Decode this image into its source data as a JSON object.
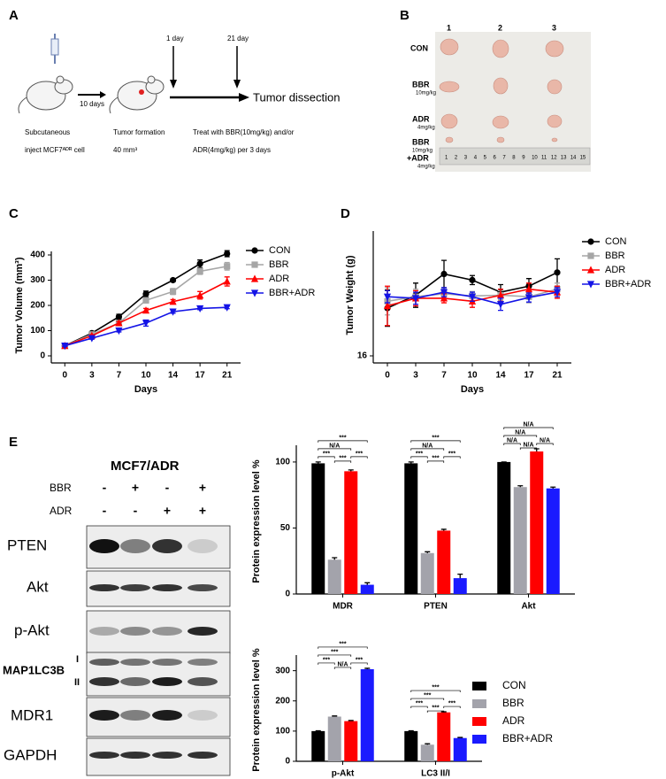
{
  "panel_labels": {
    "a": "A",
    "b": "B",
    "c": "C",
    "d": "D",
    "e": "E"
  },
  "panel_a": {
    "interval": "10 days",
    "day_start": "1 day",
    "day_end": "21 day",
    "outcome": "Tumor dissection",
    "step1": [
      "Subcutaneous",
      "inject MCF7ᴬᴰᴿ cell"
    ],
    "step2": [
      "Tumor formation",
      "40 mm³"
    ],
    "step3": [
      "Treat with BBR(10mg/kg)  and/or",
      "ADR(4mg/kg) per 3 days"
    ]
  },
  "panel_b": {
    "columns": [
      "1",
      "2",
      "3"
    ],
    "rows": [
      [
        "CON"
      ],
      [
        "BBR",
        "10mg/kg"
      ],
      [
        "ADR",
        "4mg/kg"
      ],
      [
        "BBR",
        "10mg/kg",
        "+ADR",
        "4mg/kg"
      ]
    ],
    "ruler": [
      "1",
      "2",
      "3",
      "4",
      "5",
      "6",
      "7",
      "8",
      "9",
      "10",
      "11",
      "12",
      "13",
      "14",
      "15"
    ]
  },
  "panel_e_blot": {
    "title": "MCF7/ADR",
    "treatments": [
      {
        "name": "BBR",
        "signs": [
          "-",
          "+",
          "-",
          "+"
        ]
      },
      {
        "name": "ADR",
        "signs": [
          "-",
          "-",
          "+",
          "+"
        ]
      }
    ],
    "rows": [
      "PTEN",
      "Akt",
      "p-Akt",
      "MAP1LC3B",
      "MDR1",
      "GAPDH"
    ],
    "lc3_bands": [
      "I",
      "II"
    ]
  },
  "chart_data": [
    {
      "type": "line",
      "xlabel": "Days",
      "ylabel": "Tumor Volume (mm³)",
      "categories": [
        "0",
        "3",
        "7",
        "10",
        "14",
        "17",
        "21"
      ],
      "ylim": [
        0,
        400
      ],
      "yticks": [
        0,
        100,
        200,
        300,
        400
      ],
      "legend": true,
      "series": [
        {
          "name": "CON",
          "color": "#000000",
          "marker": "circle",
          "values": [
            40,
            90,
            155,
            245,
            300,
            365,
            405
          ],
          "errors": [
            3,
            5,
            10,
            12,
            6,
            15,
            12
          ]
        },
        {
          "name": "BBR",
          "color": "#a6a6a6",
          "marker": "square",
          "values": [
            40,
            85,
            130,
            220,
            255,
            335,
            355
          ],
          "errors": [
            3,
            4,
            8,
            10,
            12,
            12,
            15
          ]
        },
        {
          "name": "ADR",
          "color": "#ff0000",
          "marker": "triangle-up",
          "values": [
            40,
            80,
            130,
            180,
            215,
            240,
            295
          ],
          "errors": [
            3,
            4,
            6,
            8,
            8,
            15,
            18
          ]
        },
        {
          "name": "BBR+ADR",
          "color": "#1414e6",
          "marker": "triangle-down",
          "values": [
            40,
            70,
            100,
            130,
            175,
            188,
            192
          ],
          "errors": [
            3,
            4,
            5,
            12,
            6,
            5,
            5
          ]
        }
      ]
    },
    {
      "type": "line",
      "xlabel": "Days",
      "ylabel": "Tumor Weight (g)",
      "categories": [
        "0",
        "3",
        "7",
        "10",
        "14",
        "17",
        "21"
      ],
      "ylim": [
        16,
        24
      ],
      "yticks": [
        16
      ],
      "legend": true,
      "series": [
        {
          "name": "CON",
          "color": "#000000",
          "marker": "circle",
          "values": [
            19.15,
            20.0,
            21.4,
            21.0,
            20.2,
            20.6,
            21.5
          ],
          "errors": [
            1.2,
            0.8,
            0.9,
            0.3,
            0.5,
            0.5,
            0.9
          ]
        },
        {
          "name": "BBR",
          "color": "#a6a6a6",
          "marker": "square",
          "values": [
            19.6,
            19.9,
            20.1,
            19.95,
            20.0,
            19.9,
            20.4
          ],
          "errors": [
            0.9,
            0.5,
            0.3,
            0.3,
            0.3,
            0.4,
            0.4
          ]
        },
        {
          "name": "ADR",
          "color": "#ff0000",
          "marker": "triangle-up",
          "values": [
            19.3,
            19.8,
            19.8,
            19.6,
            20.0,
            20.4,
            20.2
          ],
          "errors": [
            1.3,
            0.5,
            0.3,
            0.4,
            0.4,
            0.4,
            0.4
          ]
        },
        {
          "name": "BBR+ADR",
          "color": "#1414e6",
          "marker": "triangle-down",
          "values": [
            19.9,
            19.8,
            20.2,
            19.9,
            19.4,
            19.85,
            20.2
          ],
          "errors": [
            0.4,
            0.4,
            0.3,
            0.3,
            0.4,
            0.3,
            0.3
          ]
        }
      ]
    },
    {
      "type": "bar",
      "ylabel": "Protein expression level %",
      "categories": [
        "MDR",
        "PTEN",
        "Akt"
      ],
      "ylim": [
        0,
        110
      ],
      "yticks": [
        0,
        50,
        100
      ],
      "legend": false,
      "series": [
        {
          "name": "CON",
          "color": "#000000",
          "values": [
            99,
            99,
            100
          ],
          "errors": [
            1,
            1,
            0
          ]
        },
        {
          "name": "BBR",
          "color": "#a3a3ab",
          "values": [
            26,
            31,
            81
          ],
          "errors": [
            1.5,
            1,
            1
          ]
        },
        {
          "name": "ADR",
          "color": "#ff0000",
          "values": [
            93,
            48,
            108
          ],
          "errors": [
            1,
            1,
            2
          ]
        },
        {
          "name": "BBR+ADR",
          "color": "#1a1aff",
          "values": [
            7,
            12,
            80
          ],
          "errors": [
            1.5,
            3,
            1
          ]
        }
      ],
      "significance": [
        {
          "category": 0,
          "from": 0,
          "to": 3,
          "text": "***"
        },
        {
          "category": 0,
          "from": 0,
          "to": 2,
          "text": "N/A"
        },
        {
          "category": 0,
          "from": 0,
          "to": 1,
          "text": "***"
        },
        {
          "category": 0,
          "from": 2,
          "to": 3,
          "text": "***"
        },
        {
          "category": 0,
          "from": 1,
          "to": 2,
          "text": "***"
        },
        {
          "category": 1,
          "from": 0,
          "to": 3,
          "text": "***"
        },
        {
          "category": 1,
          "from": 0,
          "to": 2,
          "text": "N/A"
        },
        {
          "category": 1,
          "from": 0,
          "to": 1,
          "text": "***"
        },
        {
          "category": 1,
          "from": 2,
          "to": 3,
          "text": "***"
        },
        {
          "category": 1,
          "from": 1,
          "to": 2,
          "text": "***"
        },
        {
          "category": 2,
          "from": 0,
          "to": 3,
          "text": "N/A"
        },
        {
          "category": 2,
          "from": 0,
          "to": 2,
          "text": "N/A"
        },
        {
          "category": 2,
          "from": 0,
          "to": 1,
          "text": "N/A"
        },
        {
          "category": 2,
          "from": 2,
          "to": 3,
          "text": "N/A"
        },
        {
          "category": 2,
          "from": 1,
          "to": 2,
          "text": "N/A"
        }
      ]
    },
    {
      "type": "bar",
      "ylabel": "Protein expression level %",
      "categories": [
        "p-Akt",
        "LC3 II/I"
      ],
      "ylim": [
        0,
        340
      ],
      "yticks": [
        0,
        100,
        200,
        300
      ],
      "legend": true,
      "series": [
        {
          "name": "CON",
          "color": "#000000",
          "values": [
            100,
            100
          ],
          "errors": [
            1,
            1
          ]
        },
        {
          "name": "BBR",
          "color": "#a3a3ab",
          "values": [
            148,
            55
          ],
          "errors": [
            2,
            3
          ]
        },
        {
          "name": "ADR",
          "color": "#ff0000",
          "values": [
            133,
            162
          ],
          "errors": [
            2,
            2
          ]
        },
        {
          "name": "BBR+ADR",
          "color": "#1a1aff",
          "values": [
            305,
            77
          ],
          "errors": [
            3,
            2
          ]
        }
      ],
      "significance": [
        {
          "category": 0,
          "from": 0,
          "to": 3,
          "text": "***"
        },
        {
          "category": 0,
          "from": 0,
          "to": 2,
          "text": "***"
        },
        {
          "category": 0,
          "from": 0,
          "to": 1,
          "text": "***"
        },
        {
          "category": 0,
          "from": 2,
          "to": 3,
          "text": "***"
        },
        {
          "category": 0,
          "from": 1,
          "to": 2,
          "text": "N/A"
        },
        {
          "category": 1,
          "from": 0,
          "to": 3,
          "text": "***"
        },
        {
          "category": 1,
          "from": 0,
          "to": 2,
          "text": "***"
        },
        {
          "category": 1,
          "from": 0,
          "to": 1,
          "text": "***"
        },
        {
          "category": 1,
          "from": 2,
          "to": 3,
          "text": "***"
        },
        {
          "category": 1,
          "from": 1,
          "to": 2,
          "text": "***"
        }
      ]
    }
  ]
}
